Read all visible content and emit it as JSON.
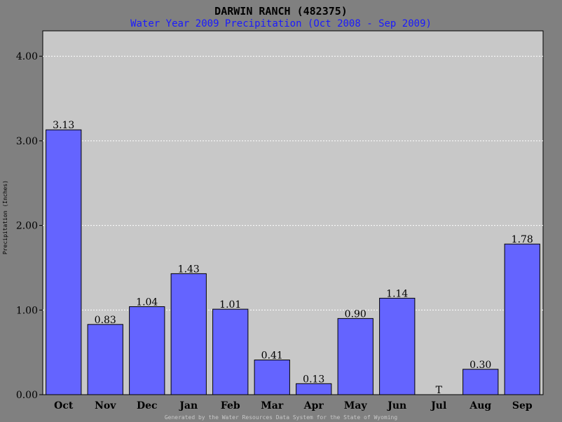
{
  "colors": {
    "background": "#808080",
    "plot_background": "#c8c8c8",
    "bar_fill": "#6464ff",
    "grid": "#ffffff",
    "subtitle": "#1a1aff"
  },
  "footer": "Generated by the Water Resources Data System for the State of Wyoming",
  "chart_data": {
    "type": "bar",
    "title": "DARWIN RANCH (482375)",
    "subtitle": "Water Year 2009 Precipitation (Oct 2008 - Sep 2009)",
    "xlabel": "",
    "ylabel": "Precipitation (Inches)",
    "ylim": [
      0,
      4.3
    ],
    "yticks": [
      "0.00",
      "1.00",
      "2.00",
      "3.00",
      "4.00"
    ],
    "grid": true,
    "categories": [
      "Oct",
      "Nov",
      "Dec",
      "Jan",
      "Feb",
      "Mar",
      "Apr",
      "May",
      "Jun",
      "Jul",
      "Aug",
      "Sep"
    ],
    "values": [
      3.13,
      0.83,
      1.04,
      1.43,
      1.01,
      0.41,
      0.13,
      0.9,
      1.14,
      0,
      0.3,
      1.78
    ],
    "data_labels": [
      "3.13",
      "0.83",
      "1.04",
      "1.43",
      "1.01",
      "0.41",
      "0.13",
      "0.90",
      "1.14",
      "T",
      "0.30",
      "1.78"
    ]
  }
}
